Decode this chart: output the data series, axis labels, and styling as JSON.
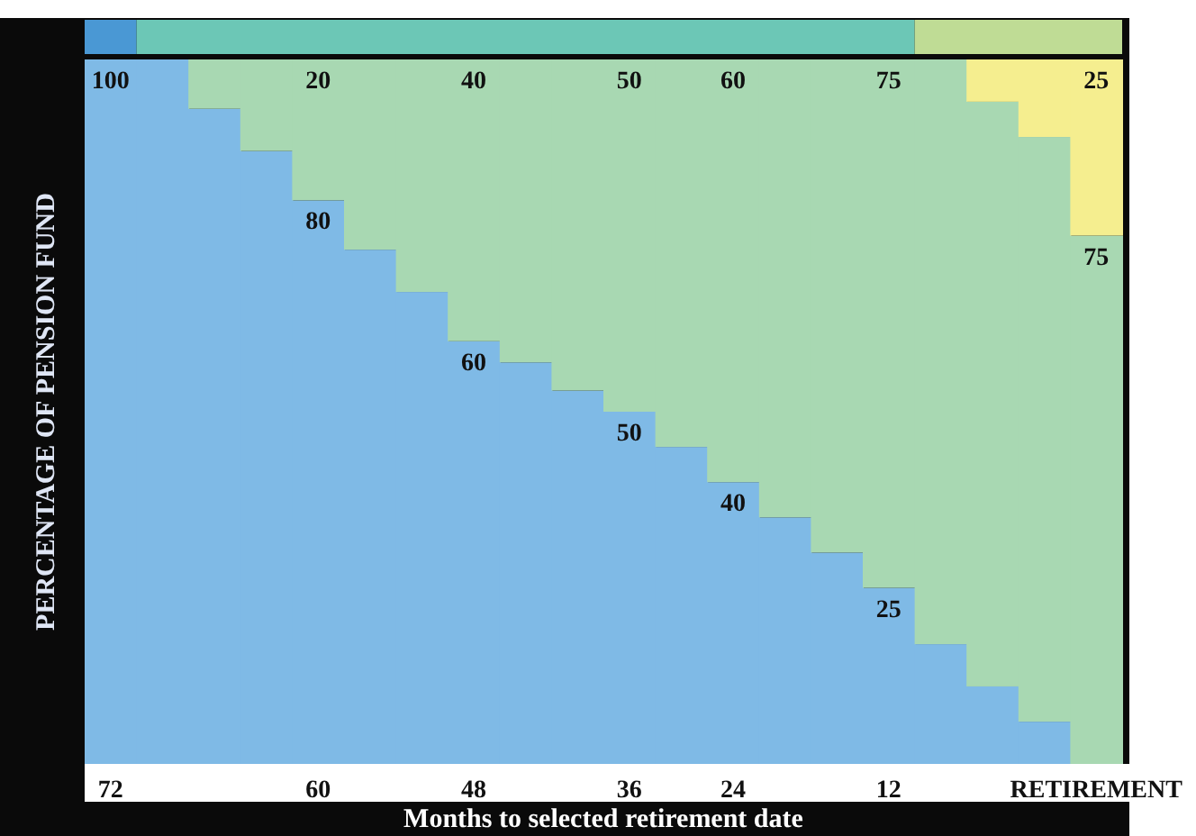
{
  "chart_data": {
    "type": "bar",
    "stacked": true,
    "xlabel": "Months to selected retirement date",
    "ylabel": "PERCENTAGE OF PENSION FUND",
    "categories": [
      "72",
      null,
      null,
      null,
      "60",
      null,
      null,
      "48",
      null,
      null,
      "36",
      null,
      "24",
      null,
      null,
      "12",
      null,
      null,
      null,
      "RETIREMENT"
    ],
    "ylim": [
      0,
      100
    ],
    "tick_labels": "x",
    "series": [
      {
        "color": "#7fbae6",
        "values": [
          100,
          100,
          93,
          87,
          80,
          73,
          67,
          60,
          57,
          53,
          50,
          45,
          40,
          35,
          30,
          25,
          17,
          11,
          6,
          0
        ],
        "value_labels": [
          "100",
          null,
          null,
          null,
          "80",
          null,
          null,
          "60",
          null,
          null,
          "50",
          null,
          "40",
          null,
          null,
          "25",
          null,
          null,
          null,
          null
        ]
      },
      {
        "color": "#a8d8b2",
        "values": [
          0,
          0,
          7,
          13,
          20,
          27,
          33,
          40,
          43,
          47,
          50,
          55,
          60,
          65,
          70,
          75,
          83,
          83,
          83,
          75
        ],
        "value_labels": [
          null,
          null,
          null,
          null,
          "20",
          null,
          null,
          "40",
          null,
          null,
          "50",
          null,
          "60",
          null,
          null,
          "75",
          null,
          null,
          null,
          "75"
        ]
      },
      {
        "color": "#f5ee8f",
        "values": [
          0,
          0,
          0,
          0,
          0,
          0,
          0,
          0,
          0,
          0,
          0,
          0,
          0,
          0,
          0,
          0,
          0,
          6,
          11,
          25
        ],
        "value_labels": [
          null,
          null,
          null,
          null,
          null,
          null,
          null,
          null,
          null,
          null,
          null,
          null,
          null,
          null,
          null,
          null,
          null,
          null,
          null,
          "25"
        ]
      }
    ]
  }
}
